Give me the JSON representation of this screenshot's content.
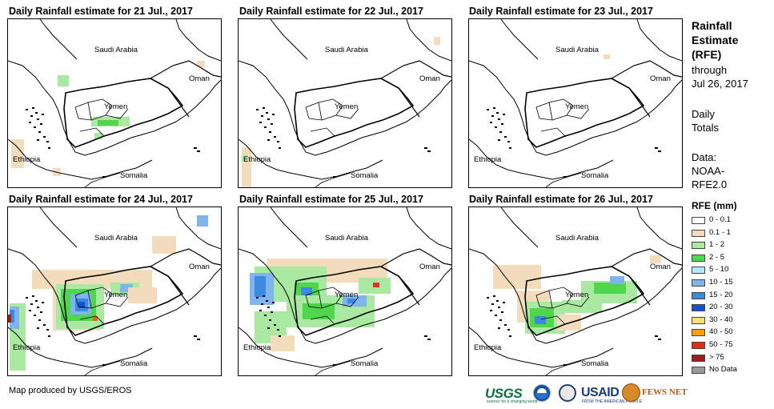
{
  "panels": [
    {
      "title": "Daily Rainfall estimate for 21 Jul., 2017",
      "rain": [
        {
          "c": "#a9e9a2",
          "x": 62,
          "y": 70,
          "w": 14,
          "h": 14
        },
        {
          "c": "#a9e9a2",
          "x": 104,
          "y": 122,
          "w": 48,
          "h": 12
        },
        {
          "c": "#4fd64a",
          "x": 112,
          "y": 126,
          "w": 26,
          "h": 7
        },
        {
          "c": "#f2dcbc",
          "x": 4,
          "y": 150,
          "w": 16,
          "h": 36
        },
        {
          "c": "#f2dcbc",
          "x": 56,
          "y": 186,
          "w": 10,
          "h": 10
        },
        {
          "c": "#a9e9a2",
          "x": 108,
          "y": 142,
          "w": 10,
          "h": 8
        },
        {
          "c": "#f2dcbc",
          "x": 236,
          "y": 52,
          "w": 10,
          "h": 8
        }
      ]
    },
    {
      "title": "Daily Rainfall estimate for 22 Jul., 2017",
      "rain": [
        {
          "c": "#f2dcbc",
          "x": 4,
          "y": 160,
          "w": 12,
          "h": 50
        },
        {
          "c": "#a9e9a2",
          "x": 4,
          "y": 170,
          "w": 7,
          "h": 8
        },
        {
          "c": "#f2dcbc",
          "x": 244,
          "y": 22,
          "w": 8,
          "h": 10
        }
      ]
    },
    {
      "title": "Daily Rainfall estimate for 23 Jul., 2017",
      "rain": [
        {
          "c": "#f2dcbc",
          "x": 168,
          "y": 44,
          "w": 8,
          "h": 6
        }
      ]
    },
    {
      "title": "Daily Rainfall estimate for 24 Jul., 2017",
      "rain": [
        {
          "c": "#f2dcbc",
          "x": 30,
          "y": 78,
          "w": 150,
          "h": 24
        },
        {
          "c": "#f2dcbc",
          "x": 180,
          "y": 36,
          "w": 30,
          "h": 22
        },
        {
          "c": "#f2dcbc",
          "x": 56,
          "y": 92,
          "w": 60,
          "h": 62
        },
        {
          "c": "#a9e9a2",
          "x": 60,
          "y": 96,
          "w": 60,
          "h": 56
        },
        {
          "c": "#4fd64a",
          "x": 66,
          "y": 102,
          "w": 44,
          "h": 40
        },
        {
          "c": "#7fb5ec",
          "x": 78,
          "y": 108,
          "w": 26,
          "h": 26
        },
        {
          "c": "#3c8ae0",
          "x": 84,
          "y": 114,
          "w": 16,
          "h": 16
        },
        {
          "c": "#1550d6",
          "x": 88,
          "y": 118,
          "w": 8,
          "h": 8
        },
        {
          "c": "#e66a00",
          "x": 106,
          "y": 136,
          "w": 6,
          "h": 6
        },
        {
          "c": "#a9e9a2",
          "x": 128,
          "y": 94,
          "w": 36,
          "h": 16
        },
        {
          "c": "#7fb5ec",
          "x": 140,
          "y": 96,
          "w": 16,
          "h": 10
        },
        {
          "c": "#a9e9a2",
          "x": 2,
          "y": 120,
          "w": 20,
          "h": 84
        },
        {
          "c": "#7fb5ec",
          "x": 2,
          "y": 124,
          "w": 12,
          "h": 28
        },
        {
          "c": "#3c8ae0",
          "x": 2,
          "y": 128,
          "w": 6,
          "h": 16
        },
        {
          "c": "#9b1d1d",
          "x": 0,
          "y": 134,
          "w": 4,
          "h": 10
        },
        {
          "c": "#7fb5ec",
          "x": 236,
          "y": 10,
          "w": 14,
          "h": 14
        },
        {
          "c": "#f2dcbc",
          "x": 150,
          "y": 100,
          "w": 36,
          "h": 20
        }
      ]
    },
    {
      "title": "Daily Rainfall estimate for 25 Jul., 2017",
      "rain": [
        {
          "c": "#f2dcbc",
          "x": 36,
          "y": 64,
          "w": 150,
          "h": 30
        },
        {
          "c": "#a9e9a2",
          "x": 20,
          "y": 74,
          "w": 90,
          "h": 44
        },
        {
          "c": "#7fb5ec",
          "x": 14,
          "y": 82,
          "w": 30,
          "h": 40
        },
        {
          "c": "#3c8ae0",
          "x": 20,
          "y": 86,
          "w": 14,
          "h": 26
        },
        {
          "c": "#4fd64a",
          "x": 70,
          "y": 94,
          "w": 30,
          "h": 18
        },
        {
          "c": "#3c8ae0",
          "x": 78,
          "y": 100,
          "w": 14,
          "h": 10
        },
        {
          "c": "#a9e9a2",
          "x": 60,
          "y": 110,
          "w": 110,
          "h": 40
        },
        {
          "c": "#4fd64a",
          "x": 80,
          "y": 120,
          "w": 40,
          "h": 20
        },
        {
          "c": "#7fb5ec",
          "x": 130,
          "y": 110,
          "w": 30,
          "h": 14
        },
        {
          "c": "#3c8ae0",
          "x": 136,
          "y": 114,
          "w": 10,
          "h": 6
        },
        {
          "c": "#a9e9a2",
          "x": 150,
          "y": 88,
          "w": 40,
          "h": 20
        },
        {
          "c": "#e03030",
          "x": 168,
          "y": 94,
          "w": 8,
          "h": 6
        },
        {
          "c": "#a9e9a2",
          "x": 20,
          "y": 130,
          "w": 40,
          "h": 40
        },
        {
          "c": "#f2dcbc",
          "x": 40,
          "y": 160,
          "w": 30,
          "h": 20
        }
      ]
    },
    {
      "title": "Daily Rainfall estimate for 26 Jul., 2017",
      "rain": [
        {
          "c": "#f2dcbc",
          "x": 30,
          "y": 72,
          "w": 60,
          "h": 30
        },
        {
          "c": "#f2dcbc",
          "x": 60,
          "y": 104,
          "w": 40,
          "h": 40
        },
        {
          "c": "#a9e9a2",
          "x": 70,
          "y": 118,
          "w": 50,
          "h": 40
        },
        {
          "c": "#4fd64a",
          "x": 76,
          "y": 126,
          "w": 30,
          "h": 24
        },
        {
          "c": "#3c8ae0",
          "x": 82,
          "y": 136,
          "w": 14,
          "h": 10
        },
        {
          "c": "#a9e9a2",
          "x": 140,
          "y": 92,
          "w": 70,
          "h": 28
        },
        {
          "c": "#4fd64a",
          "x": 156,
          "y": 94,
          "w": 40,
          "h": 14
        },
        {
          "c": "#7fb5ec",
          "x": 176,
          "y": 86,
          "w": 18,
          "h": 10
        },
        {
          "c": "#a9e9a2",
          "x": 116,
          "y": 116,
          "w": 50,
          "h": 16
        },
        {
          "c": "#f2dcbc",
          "x": 226,
          "y": 60,
          "w": 14,
          "h": 10
        },
        {
          "c": "#f2dcbc",
          "x": 110,
          "y": 134,
          "w": 30,
          "h": 20
        }
      ]
    }
  ],
  "labels": {
    "saudi": "Saudi Arabia",
    "oman": "Oman",
    "yemen": "Yemen",
    "ethiopia": "Ethiopia",
    "somalia": "Somalia"
  },
  "side": {
    "title_line1": "Rainfall",
    "title_line2": "Estimate",
    "title_line3": "(RFE)",
    "through": "through",
    "date": "Jul 26, 2017",
    "daily": "Daily",
    "totals": "Totals",
    "data_label": "Data:",
    "data_src1": "NOAA-",
    "data_src2": "RFE2.0"
  },
  "legend": {
    "title": "RFE (mm)",
    "items": [
      {
        "label": "0 - 0.1",
        "color": "#ffffff"
      },
      {
        "label": "0.1 - 1",
        "color": "#f2dcbc"
      },
      {
        "label": "1 - 2",
        "color": "#a9e9a2"
      },
      {
        "label": "2 - 5",
        "color": "#4fd64a"
      },
      {
        "label": "5 - 10",
        "color": "#b6e7f6"
      },
      {
        "label": "10 - 15",
        "color": "#7fb5ec"
      },
      {
        "label": "15 - 20",
        "color": "#3c8ae0"
      },
      {
        "label": "20 - 30",
        "color": "#1550d6"
      },
      {
        "label": "30 - 40",
        "color": "#fbe07a"
      },
      {
        "label": "40 - 50",
        "color": "#f3a300"
      },
      {
        "label": "50 - 75",
        "color": "#e42a10"
      },
      {
        "label": "> 75",
        "color": "#9b1d1d"
      },
      {
        "label": "No Data",
        "color": "#9a9a9a"
      }
    ]
  },
  "credit": "Map produced by USGS/EROS",
  "logos": {
    "usgs": "USGS",
    "usgs_tagline": "science for a changing world",
    "usaid": "USAID",
    "usaid_tagline": "FROM THE AMERICAN PEOPLE",
    "fews": "FEWS NET"
  }
}
